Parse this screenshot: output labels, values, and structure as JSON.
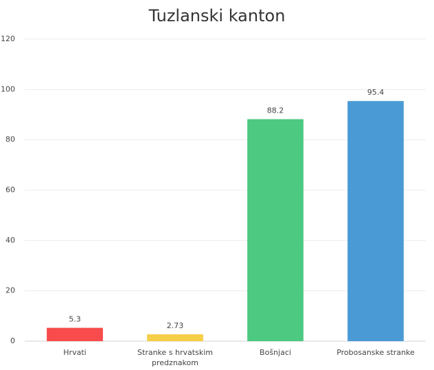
{
  "chart_data": {
    "type": "bar",
    "title": "Tuzlanski kanton",
    "categories": [
      "Hrvati",
      "Stranke s hrvatskim predznakom",
      "Bošnjaci",
      "Probosanske stranke"
    ],
    "values": [
      5.3,
      2.73,
      88.2,
      95.4
    ],
    "colors": [
      "#f84b4b",
      "#f6cf48",
      "#4dc982",
      "#4a9bd5"
    ],
    "ylim": [
      0,
      120
    ],
    "yticks": [
      0,
      20,
      40,
      60,
      80,
      100,
      120
    ],
    "grid": true,
    "data_labels": true
  }
}
